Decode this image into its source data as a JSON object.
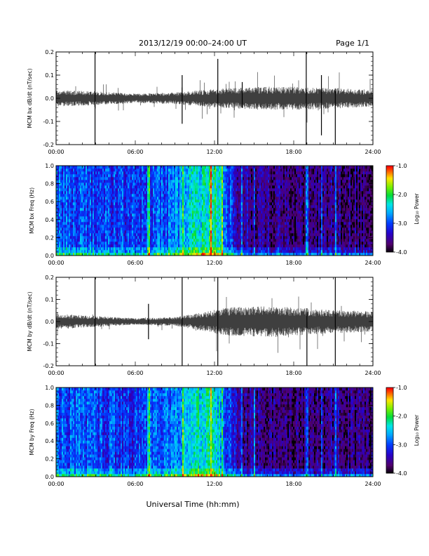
{
  "header": {
    "title": "2013/12/19   00:00–24:00 UT",
    "page": "Page 1/1"
  },
  "xlabel": "Universal Time (hh:mm)",
  "colorbar": {
    "label": "Log₁₀ Power",
    "ticks": [
      "-1.0",
      "-2.0",
      "-3.0",
      "-4.0"
    ],
    "range": [
      -4.0,
      -1.0
    ]
  },
  "chart_data": [
    {
      "type": "line",
      "ylabel": "MCM bx dB/dt (nT/sec)",
      "xlim": [
        0,
        24
      ],
      "ylim": [
        -0.2,
        0.2
      ],
      "x_ticks": [
        "00:00",
        "06:00",
        "12:00",
        "18:00",
        "24:00"
      ],
      "y_ticks": [
        "0.2",
        "0.1",
        "0.0",
        "-0.1",
        "-0.2"
      ],
      "grid": false,
      "series": [
        {
          "amplitude_envelope": [
            {
              "hour": 0,
              "amp": 0.035
            },
            {
              "hour": 3,
              "amp": 0.03
            },
            {
              "hour": 6,
              "amp": 0.02
            },
            {
              "hour": 9,
              "amp": 0.025
            },
            {
              "hour": 12,
              "amp": 0.04
            },
            {
              "hour": 15,
              "amp": 0.05
            },
            {
              "hour": 18,
              "amp": 0.05
            },
            {
              "hour": 21,
              "amp": 0.045
            },
            {
              "hour": 24,
              "amp": 0.035
            }
          ]
        }
      ],
      "spikes": [
        {
          "hour": 2.95,
          "min": -0.2,
          "max": 0.2
        },
        {
          "hour": 9.55,
          "min": -0.11,
          "max": 0.1
        },
        {
          "hour": 12.25,
          "min": -0.2,
          "max": 0.17
        },
        {
          "hour": 14.1,
          "min": -0.04,
          "max": 0.07
        },
        {
          "hour": 18.95,
          "min": -0.2,
          "max": 0.2
        },
        {
          "hour": 20.1,
          "min": -0.16,
          "max": 0.1
        },
        {
          "hour": 21.15,
          "min": -0.2,
          "max": 0.03
        }
      ]
    },
    {
      "type": "heatmap",
      "ylabel": "MCM bx Freq (Hz)",
      "xlim": [
        0,
        24
      ],
      "ylim": [
        0.0,
        1.0
      ],
      "x_ticks": [
        "00:00",
        "06:00",
        "12:00",
        "18:00",
        "24:00"
      ],
      "y_ticks": [
        "1.0",
        "0.8",
        "0.6",
        "0.4",
        "0.2",
        "0.0"
      ],
      "zlim": [
        -4.0,
        -1.0
      ],
      "power_by_hour": [
        {
          "hour": 0,
          "power": -2.9
        },
        {
          "hour": 3,
          "power": -3.0
        },
        {
          "hour": 6,
          "power": -3.1
        },
        {
          "hour": 9,
          "power": -2.8
        },
        {
          "hour": 10.5,
          "power": -2.4
        },
        {
          "hour": 12,
          "power": -2.1
        },
        {
          "hour": 13,
          "power": -2.9
        },
        {
          "hour": 14,
          "power": -3.5
        },
        {
          "hour": 18,
          "power": -3.7
        },
        {
          "hour": 21,
          "power": -3.6
        },
        {
          "hour": 24,
          "power": -3.7
        }
      ],
      "bright_columns": [
        7.0,
        9.6,
        11.7,
        12.6,
        14.1,
        15.0,
        19.0,
        20.1,
        21.2
      ]
    },
    {
      "type": "line",
      "ylabel": "MCM by dB/dt (nT/sec)",
      "xlim": [
        0,
        24
      ],
      "ylim": [
        -0.2,
        0.2
      ],
      "x_ticks": [
        "00:00",
        "06:00",
        "12:00",
        "18:00",
        "24:00"
      ],
      "y_ticks": [
        "0.2",
        "0.1",
        "0.0",
        "-0.1",
        "-0.2"
      ],
      "grid": false,
      "series": [
        {
          "amplitude_envelope": [
            {
              "hour": 0,
              "amp": 0.035
            },
            {
              "hour": 3,
              "amp": 0.025
            },
            {
              "hour": 6,
              "amp": 0.015
            },
            {
              "hour": 9,
              "amp": 0.02
            },
            {
              "hour": 11,
              "amp": 0.04
            },
            {
              "hour": 13,
              "amp": 0.065
            },
            {
              "hour": 16,
              "amp": 0.07
            },
            {
              "hour": 19,
              "amp": 0.06
            },
            {
              "hour": 24,
              "amp": 0.045
            }
          ]
        }
      ],
      "spikes": [
        {
          "hour": 2.95,
          "min": -0.2,
          "max": 0.2
        },
        {
          "hour": 7.0,
          "min": -0.08,
          "max": 0.08
        },
        {
          "hour": 9.55,
          "min": -0.2,
          "max": 0.2
        },
        {
          "hour": 12.25,
          "min": -0.2,
          "max": 0.2
        },
        {
          "hour": 19.0,
          "min": -0.2,
          "max": 0.06
        },
        {
          "hour": 21.15,
          "min": -0.2,
          "max": 0.2
        }
      ]
    },
    {
      "type": "heatmap",
      "ylabel": "MCM by Freq (Hz)",
      "xlim": [
        0,
        24
      ],
      "ylim": [
        0.0,
        1.0
      ],
      "x_ticks": [
        "00:00",
        "06:00",
        "12:00",
        "18:00",
        "24:00"
      ],
      "y_ticks": [
        "1.0",
        "0.8",
        "0.6",
        "0.4",
        "0.2",
        "0.0"
      ],
      "zlim": [
        -4.0,
        -1.0
      ],
      "power_by_hour": [
        {
          "hour": 0,
          "power": -2.9
        },
        {
          "hour": 3,
          "power": -3.0
        },
        {
          "hour": 6,
          "power": -3.1
        },
        {
          "hour": 9,
          "power": -2.8
        },
        {
          "hour": 10.5,
          "power": -2.4
        },
        {
          "hour": 12,
          "power": -2.2
        },
        {
          "hour": 13,
          "power": -3.0
        },
        {
          "hour": 14,
          "power": -3.5
        },
        {
          "hour": 18,
          "power": -3.7
        },
        {
          "hour": 21,
          "power": -3.6
        },
        {
          "hour": 24,
          "power": -3.7
        }
      ],
      "bright_columns": [
        7.0,
        9.6,
        11.7,
        12.6,
        14.1,
        15.0,
        19.0,
        20.1,
        21.2
      ]
    }
  ]
}
